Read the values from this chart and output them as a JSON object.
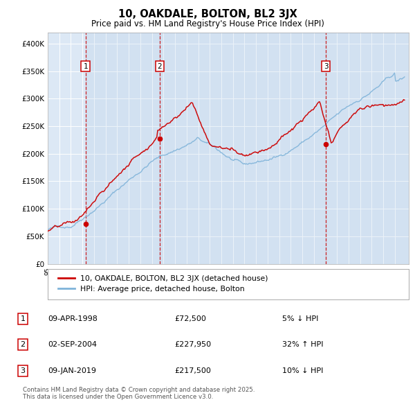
{
  "title": "10, OAKDALE, BOLTON, BL2 3JX",
  "subtitle": "Price paid vs. HM Land Registry's House Price Index (HPI)",
  "bg_color": "#dce8f5",
  "fig_bg_color": "#ffffff",
  "red_line_color": "#cc0000",
  "blue_line_color": "#7fb3d9",
  "dashed_line_color": "#cc0000",
  "annotation_border_color": "#cc0000",
  "ylim": [
    0,
    420000
  ],
  "yticks": [
    0,
    50000,
    100000,
    150000,
    200000,
    250000,
    300000,
    350000,
    400000
  ],
  "ytick_labels": [
    "£0",
    "£50K",
    "£100K",
    "£150K",
    "£200K",
    "£250K",
    "£300K",
    "£350K",
    "£400K"
  ],
  "sale1_date": 1998.27,
  "sale1_price": 72500,
  "sale1_label": "1",
  "sale2_date": 2004.67,
  "sale2_price": 227950,
  "sale2_label": "2",
  "sale3_date": 2019.03,
  "sale3_price": 217500,
  "sale3_label": "3",
  "legend_red_label": "10, OAKDALE, BOLTON, BL2 3JX (detached house)",
  "legend_blue_label": "HPI: Average price, detached house, Bolton",
  "table_rows": [
    {
      "num": "1",
      "date": "09-APR-1998",
      "price": "£72,500",
      "pct": "5% ↓ HPI"
    },
    {
      "num": "2",
      "date": "02-SEP-2004",
      "price": "£227,950",
      "pct": "32% ↑ HPI"
    },
    {
      "num": "3",
      "date": "09-JAN-2019",
      "price": "£217,500",
      "pct": "10% ↓ HPI"
    }
  ],
  "footnote": "Contains HM Land Registry data © Crown copyright and database right 2025.\nThis data is licensed under the Open Government Licence v3.0."
}
